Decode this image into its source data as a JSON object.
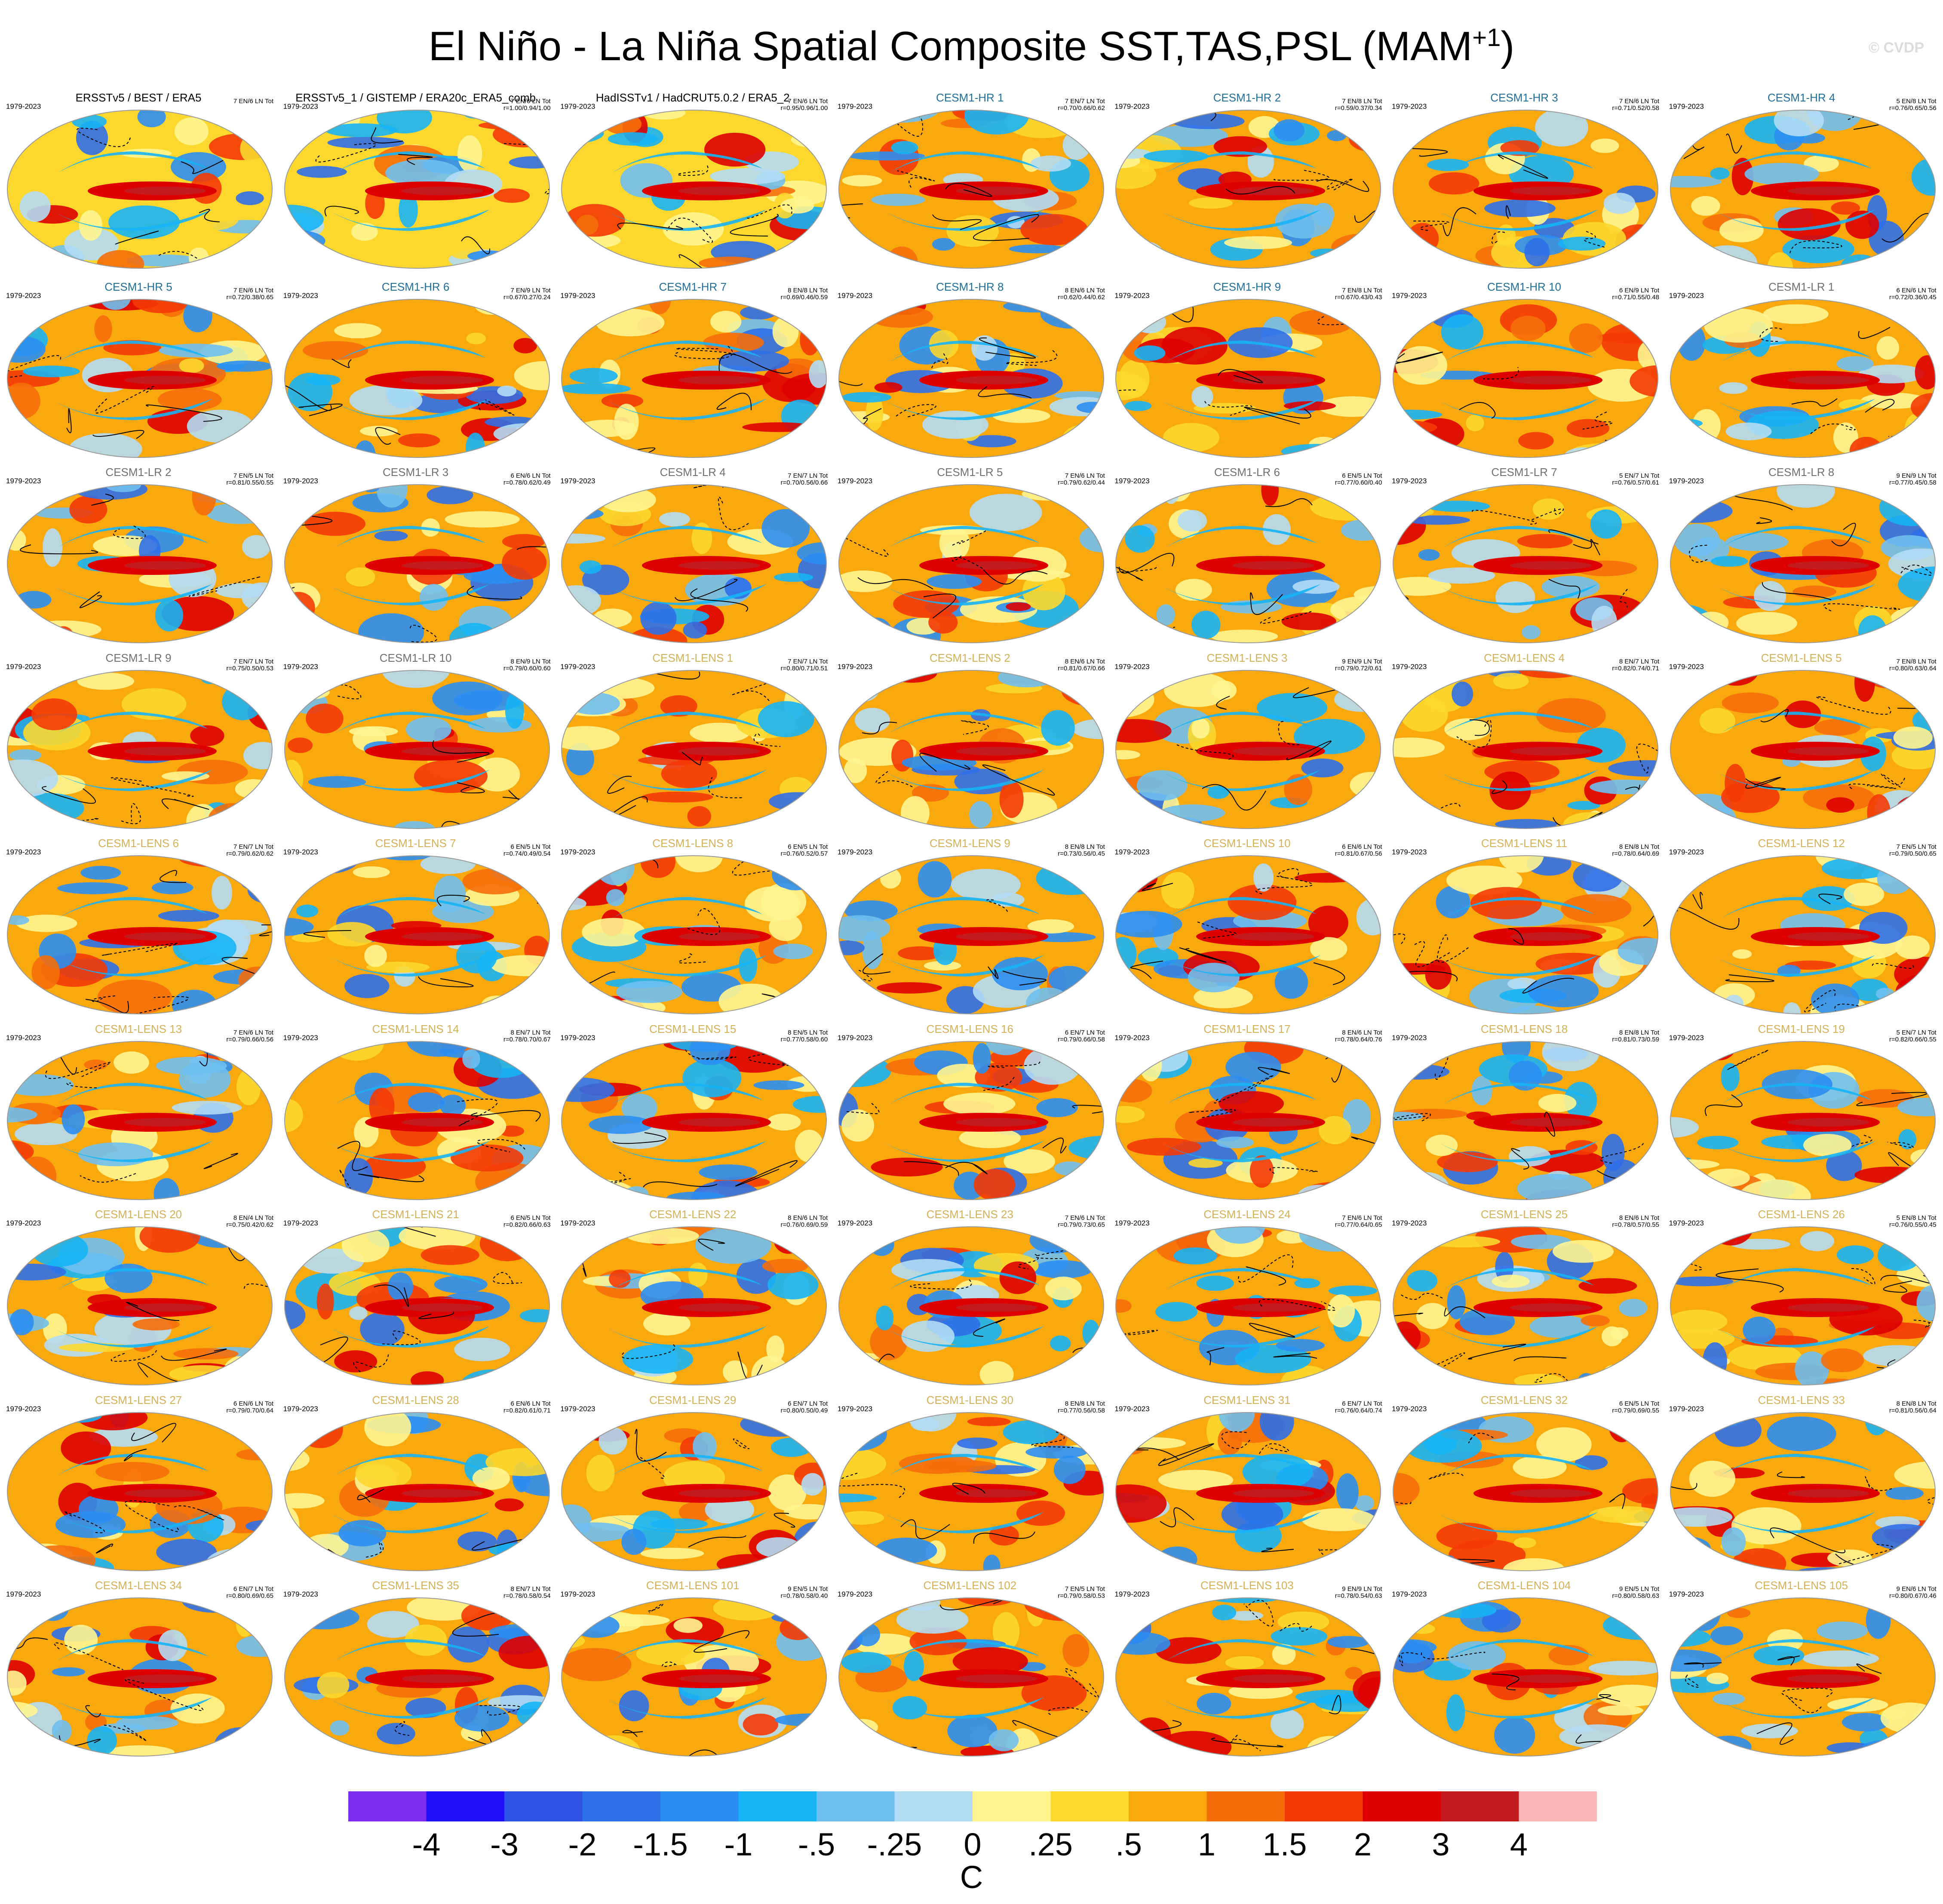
{
  "title": "El Niño - La Niña Spatial Composite SST,TAS,PSL (MAM",
  "title_sup": "+1",
  "title_end": ")",
  "watermark": "© CVDP",
  "colors": {
    "obs_title": "#000000",
    "hr_title": "#1f6f9a",
    "lr_title": "#707070",
    "lens_title": "#d4b157"
  },
  "chart_data": {
    "type": "heatmap",
    "projection": "global Robinson-style maps, filled contours with black PSL contour lines",
    "colorbar": {
      "labels": [
        "-4",
        "-3",
        "-2",
        "-1.5",
        "-1",
        "-.5",
        "-.25",
        "0",
        ".25",
        ".5",
        "1",
        "1.5",
        "2",
        "3",
        "4"
      ],
      "colors": [
        "#7b2cf0",
        "#1f10f5",
        "#2e53e4",
        "#2f6fe8",
        "#2b8ef2",
        "#16b4f5",
        "#6fbff0",
        "#b2dbf4",
        "#fff590",
        "#fcd72e",
        "#f9a80e",
        "#f56e0a",
        "#f43a05",
        "#de0000",
        "#c31a1e",
        "#f9b7b7"
      ],
      "units": "C"
    },
    "panels": [
      {
        "title": "ERSSTv5 / BEST / ERA5",
        "years": "1979-2023",
        "stats": "7 EN/6 LN Tot",
        "type": "obs"
      },
      {
        "title": "ERSSTv5_1 / GISTEMP / ERA20c_ERA5_comb",
        "years": "1979-2023",
        "stats": "7 EN/6 LN Tot\nr=1.00/0.94/1.00",
        "type": "obs"
      },
      {
        "title": "HadISSTv1 / HadCRUT5.0.2 / ERA5_2",
        "years": "1979-2023",
        "stats": "7 EN/6 LN Tot\nr=0.95/0.96/1.00",
        "type": "obs"
      },
      {
        "title": "CESM1-HR 1",
        "years": "1979-2023",
        "stats": "7 EN/7 LN Tot\nr=0.70/0.66/0.62",
        "type": "hr"
      },
      {
        "title": "CESM1-HR 2",
        "years": "1979-2023",
        "stats": "7 EN/8 LN Tot\nr=0.59/0.37/0.34",
        "type": "hr"
      },
      {
        "title": "CESM1-HR 3",
        "years": "1979-2023",
        "stats": "7 EN/6 LN Tot\nr=0.71/0.52/0.58",
        "type": "hr"
      },
      {
        "title": "CESM1-HR 4",
        "years": "1979-2023",
        "stats": "5 EN/8 LN Tot\nr=0.76/0.65/0.56",
        "type": "hr"
      },
      {
        "title": "CESM1-HR 5",
        "years": "1979-2023",
        "stats": "7 EN/6 LN Tot\nr=0.72/0.38/0.65",
        "type": "hr"
      },
      {
        "title": "CESM1-HR 6",
        "years": "1979-2023",
        "stats": "7 EN/9 LN Tot\nr=0.67/0.27/0.24",
        "type": "hr"
      },
      {
        "title": "CESM1-HR 7",
        "years": "1979-2023",
        "stats": "8 EN/8 LN Tot\nr=0.69/0.46/0.59",
        "type": "hr"
      },
      {
        "title": "CESM1-HR 8",
        "years": "1979-2023",
        "stats": "8 EN/6 LN Tot\nr=0.62/0.44/0.62",
        "type": "hr"
      },
      {
        "title": "CESM1-HR 9",
        "years": "1979-2023",
        "stats": "7 EN/8 LN Tot\nr=0.67/0.43/0.43",
        "type": "hr"
      },
      {
        "title": "CESM1-HR 10",
        "years": "1979-2023",
        "stats": "6 EN/9 LN Tot\nr=0.71/0.55/0.48",
        "type": "hr"
      },
      {
        "title": "CESM1-LR 1",
        "years": "1979-2023",
        "stats": "6 EN/6 LN Tot\nr=0.72/0.36/0.45",
        "type": "lr"
      },
      {
        "title": "CESM1-LR 2",
        "years": "1979-2023",
        "stats": "7 EN/5 LN Tot\nr=0.81/0.55/0.55",
        "type": "lr"
      },
      {
        "title": "CESM1-LR 3",
        "years": "1979-2023",
        "stats": "6 EN/6 LN Tot\nr=0.78/0.62/0.49",
        "type": "lr"
      },
      {
        "title": "CESM1-LR 4",
        "years": "1979-2023",
        "stats": "7 EN/7 LN Tot\nr=0.70/0.56/0.66",
        "type": "lr"
      },
      {
        "title": "CESM1-LR 5",
        "years": "1979-2023",
        "stats": "7 EN/6 LN Tot\nr=0.79/0.62/0.44",
        "type": "lr"
      },
      {
        "title": "CESM1-LR 6",
        "years": "1979-2023",
        "stats": "6 EN/5 LN Tot\nr=0.77/0.60/0.40",
        "type": "lr"
      },
      {
        "title": "CESM1-LR 7",
        "years": "1979-2023",
        "stats": "5 EN/7 LN Tot\nr=0.76/0.57/0.61",
        "type": "lr"
      },
      {
        "title": "CESM1-LR 8",
        "years": "1979-2023",
        "stats": "9 EN/9 LN Tot\nr=0.77/0.45/0.58",
        "type": "lr"
      },
      {
        "title": "CESM1-LR 9",
        "years": "1979-2023",
        "stats": "7 EN/7 LN Tot\nr=0.75/0.50/0.53",
        "type": "lr"
      },
      {
        "title": "CESM1-LR 10",
        "years": "1979-2023",
        "stats": "8 EN/9 LN Tot\nr=0.79/0.60/0.60",
        "type": "lr"
      },
      {
        "title": "CESM1-LENS 1",
        "years": "1979-2023",
        "stats": "7 EN/7 LN Tot\nr=0.80/0.71/0.51",
        "type": "lens"
      },
      {
        "title": "CESM1-LENS 2",
        "years": "1979-2023",
        "stats": "8 EN/6 LN Tot\nr=0.81/0.67/0.66",
        "type": "lens"
      },
      {
        "title": "CESM1-LENS 3",
        "years": "1979-2023",
        "stats": "9 EN/9 LN Tot\nr=0.79/0.72/0.61",
        "type": "lens"
      },
      {
        "title": "CESM1-LENS 4",
        "years": "1979-2023",
        "stats": "8 EN/7 LN Tot\nr=0.82/0.74/0.71",
        "type": "lens"
      },
      {
        "title": "CESM1-LENS 5",
        "years": "1979-2023",
        "stats": "7 EN/8 LN Tot\nr=0.80/0.63/0.64",
        "type": "lens"
      },
      {
        "title": "CESM1-LENS 6",
        "years": "1979-2023",
        "stats": "7 EN/7 LN Tot\nr=0.79/0.62/0.62",
        "type": "lens"
      },
      {
        "title": "CESM1-LENS 7",
        "years": "1979-2023",
        "stats": "6 EN/5 LN Tot\nr=0.74/0.49/0.54",
        "type": "lens"
      },
      {
        "title": "CESM1-LENS 8",
        "years": "1979-2023",
        "stats": "6 EN/5 LN Tot\nr=0.76/0.52/0.57",
        "type": "lens"
      },
      {
        "title": "CESM1-LENS 9",
        "years": "1979-2023",
        "stats": "8 EN/8 LN Tot\nr=0.73/0.56/0.45",
        "type": "lens"
      },
      {
        "title": "CESM1-LENS 10",
        "years": "1979-2023",
        "stats": "6 EN/6 LN Tot\nr=0.81/0.67/0.56",
        "type": "lens"
      },
      {
        "title": "CESM1-LENS 11",
        "years": "1979-2023",
        "stats": "8 EN/8 LN Tot\nr=0.78/0.64/0.69",
        "type": "lens"
      },
      {
        "title": "CESM1-LENS 12",
        "years": "1979-2023",
        "stats": "7 EN/5 LN Tot\nr=0.79/0.50/0.65",
        "type": "lens"
      },
      {
        "title": "CESM1-LENS 13",
        "years": "1979-2023",
        "stats": "7 EN/6 LN Tot\nr=0.79/0.66/0.56",
        "type": "lens"
      },
      {
        "title": "CESM1-LENS 14",
        "years": "1979-2023",
        "stats": "8 EN/7 LN Tot\nr=0.78/0.70/0.67",
        "type": "lens"
      },
      {
        "title": "CESM1-LENS 15",
        "years": "1979-2023",
        "stats": "8 EN/5 LN Tot\nr=0.77/0.58/0.60",
        "type": "lens"
      },
      {
        "title": "CESM1-LENS 16",
        "years": "1979-2023",
        "stats": "6 EN/7 LN Tot\nr=0.79/0.66/0.58",
        "type": "lens"
      },
      {
        "title": "CESM1-LENS 17",
        "years": "1979-2023",
        "stats": "8 EN/6 LN Tot\nr=0.78/0.64/0.76",
        "type": "lens"
      },
      {
        "title": "CESM1-LENS 18",
        "years": "1979-2023",
        "stats": "8 EN/8 LN Tot\nr=0.81/0.73/0.59",
        "type": "lens"
      },
      {
        "title": "CESM1-LENS 19",
        "years": "1979-2023",
        "stats": "5 EN/7 LN Tot\nr=0.82/0.66/0.55",
        "type": "lens"
      },
      {
        "title": "CESM1-LENS 20",
        "years": "1979-2023",
        "stats": "8 EN/4 LN Tot\nr=0.75/0.42/0.62",
        "type": "lens"
      },
      {
        "title": "CESM1-LENS 21",
        "years": "1979-2023",
        "stats": "6 EN/5 LN Tot\nr=0.82/0.66/0.63",
        "type": "lens"
      },
      {
        "title": "CESM1-LENS 22",
        "years": "1979-2023",
        "stats": "8 EN/6 LN Tot\nr=0.76/0.69/0.59",
        "type": "lens"
      },
      {
        "title": "CESM1-LENS 23",
        "years": "1979-2023",
        "stats": "7 EN/6 LN Tot\nr=0.79/0.73/0.65",
        "type": "lens"
      },
      {
        "title": "CESM1-LENS 24",
        "years": "1979-2023",
        "stats": "7 EN/6 LN Tot\nr=0.77/0.64/0.65",
        "type": "lens"
      },
      {
        "title": "CESM1-LENS 25",
        "years": "1979-2023",
        "stats": "8 EN/6 LN Tot\nr=0.78/0.57/0.55",
        "type": "lens"
      },
      {
        "title": "CESM1-LENS 26",
        "years": "1979-2023",
        "stats": "5 EN/8 LN Tot\nr=0.76/0.55/0.45",
        "type": "lens"
      },
      {
        "title": "CESM1-LENS 27",
        "years": "1979-2023",
        "stats": "6 EN/6 LN Tot\nr=0.79/0.70/0.64",
        "type": "lens"
      },
      {
        "title": "CESM1-LENS 28",
        "years": "1979-2023",
        "stats": "6 EN/6 LN Tot\nr=0.82/0.61/0.71",
        "type": "lens"
      },
      {
        "title": "CESM1-LENS 29",
        "years": "1979-2023",
        "stats": "6 EN/7 LN Tot\nr=0.80/0.50/0.49",
        "type": "lens"
      },
      {
        "title": "CESM1-LENS 30",
        "years": "1979-2023",
        "stats": "8 EN/8 LN Tot\nr=0.77/0.56/0.58",
        "type": "lens"
      },
      {
        "title": "CESM1-LENS 31",
        "years": "1979-2023",
        "stats": "6 EN/7 LN Tot\nr=0.76/0.64/0.74",
        "type": "lens"
      },
      {
        "title": "CESM1-LENS 32",
        "years": "1979-2023",
        "stats": "6 EN/5 LN Tot\nr=0.79/0.69/0.55",
        "type": "lens"
      },
      {
        "title": "CESM1-LENS 33",
        "years": "1979-2023",
        "stats": "8 EN/8 LN Tot\nr=0.81/0.56/0.64",
        "type": "lens"
      },
      {
        "title": "CESM1-LENS 34",
        "years": "1979-2023",
        "stats": "6 EN/7 LN Tot\nr=0.80/0.69/0.65",
        "type": "lens"
      },
      {
        "title": "CESM1-LENS 35",
        "years": "1979-2023",
        "stats": "8 EN/7 LN Tot\nr=0.78/0.58/0.54",
        "type": "lens"
      },
      {
        "title": "CESM1-LENS 101",
        "years": "1979-2023",
        "stats": "9 EN/5 LN Tot\nr=0.78/0.58/0.40",
        "type": "lens"
      },
      {
        "title": "CESM1-LENS 102",
        "years": "1979-2023",
        "stats": "7 EN/5 LN Tot\nr=0.79/0.58/0.53",
        "type": "lens"
      },
      {
        "title": "CESM1-LENS 103",
        "years": "1979-2023",
        "stats": "9 EN/9 LN Tot\nr=0.78/0.54/0.63",
        "type": "lens"
      },
      {
        "title": "CESM1-LENS 104",
        "years": "1979-2023",
        "stats": "9 EN/5 LN Tot\nr=0.80/0.58/0.63",
        "type": "lens"
      },
      {
        "title": "CESM1-LENS 105",
        "years": "1979-2023",
        "stats": "9 EN/6 LN Tot\nr=0.80/0.67/0.46",
        "type": "lens"
      }
    ]
  }
}
